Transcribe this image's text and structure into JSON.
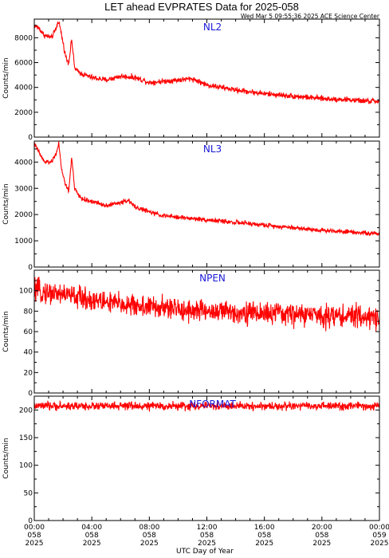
{
  "title": "LET ahead EVPRATES Data for 2025-058",
  "timestamp": "Wed Mar  5 09:55:36 2025 ACE Science Center",
  "xlabel": "UTC Day of Year",
  "colors": {
    "series": "#ff0000",
    "panel_name": "#1a1ad8",
    "axis": "#000000"
  },
  "x_ticks": [
    {
      "time": "00:00",
      "doy": "058",
      "year": "2025",
      "hour": 0
    },
    {
      "time": "04:00",
      "doy": "058",
      "year": "2025",
      "hour": 4
    },
    {
      "time": "08:00",
      "doy": "058",
      "year": "2025",
      "hour": 8
    },
    {
      "time": "12:00",
      "doy": "058",
      "year": "2025",
      "hour": 12
    },
    {
      "time": "16:00",
      "doy": "058",
      "year": "2025",
      "hour": 16
    },
    {
      "time": "20:00",
      "doy": "058",
      "year": "2025",
      "hour": 20
    },
    {
      "time": "00:00",
      "doy": "059",
      "year": "2025",
      "hour": 24
    }
  ],
  "chart_data": [
    {
      "type": "line",
      "name": "NL2",
      "ylabel": "Counts/min",
      "ylim": [
        0,
        9500
      ],
      "yticks": [
        0,
        2000,
        4000,
        6000,
        8000
      ],
      "xlim": [
        0,
        24
      ],
      "noise": 180,
      "x": [
        0,
        0.3,
        0.7,
        1.2,
        1.5,
        1.7,
        1.9,
        2.2,
        2.4,
        2.6,
        2.8,
        3.0,
        3.3,
        4,
        5,
        6,
        7,
        8,
        9,
        10,
        11,
        12,
        13,
        14,
        16,
        18,
        20,
        22,
        23,
        24
      ],
      "y": [
        9000,
        8800,
        8200,
        8000,
        8700,
        9400,
        8200,
        6400,
        6000,
        7900,
        5600,
        5300,
        5100,
        4800,
        4600,
        4900,
        4800,
        4400,
        4500,
        4600,
        4700,
        4200,
        4000,
        3800,
        3500,
        3300,
        3100,
        3000,
        2900,
        2900
      ]
    },
    {
      "type": "line",
      "name": "NL3",
      "ylabel": "Counts/min",
      "ylim": [
        0,
        4800
      ],
      "yticks": [
        0,
        1000,
        2000,
        3000,
        4000
      ],
      "xlim": [
        0,
        24
      ],
      "noise": 70,
      "x": [
        0,
        0.3,
        0.7,
        1.2,
        1.5,
        1.7,
        1.9,
        2.2,
        2.4,
        2.6,
        2.8,
        3.0,
        3.3,
        4,
        5,
        6,
        6.5,
        7,
        8,
        9,
        10,
        12,
        14,
        16,
        18,
        20,
        22,
        23,
        24
      ],
      "y": [
        4700,
        4400,
        4000,
        4000,
        4300,
        4700,
        3700,
        3100,
        2900,
        4200,
        3000,
        2800,
        2600,
        2500,
        2350,
        2450,
        2550,
        2300,
        2100,
        1950,
        1900,
        1800,
        1700,
        1600,
        1500,
        1400,
        1350,
        1300,
        1250
      ]
    },
    {
      "type": "line",
      "name": "NPEN",
      "ylabel": "Counts/min",
      "ylim": [
        0,
        120
      ],
      "yticks": [
        0,
        20,
        40,
        60,
        80,
        100
      ],
      "xlim": [
        0,
        24
      ],
      "noise": 9,
      "x": [
        0,
        1,
        2,
        3,
        4,
        6,
        8,
        10,
        12,
        14,
        16,
        18,
        20,
        22,
        24
      ],
      "y": [
        100,
        98,
        97,
        94,
        91,
        87,
        84,
        82,
        80,
        79,
        78,
        77,
        76,
        75,
        74
      ]
    },
    {
      "type": "line",
      "name": "NFORMAT",
      "ylabel": "Counts/min",
      "ylim": [
        0,
        225
      ],
      "yticks": [
        0,
        50,
        100,
        150,
        200
      ],
      "xlim": [
        0,
        24
      ],
      "noise": 6,
      "x": [
        0,
        24
      ],
      "y": [
        207,
        207
      ]
    }
  ]
}
